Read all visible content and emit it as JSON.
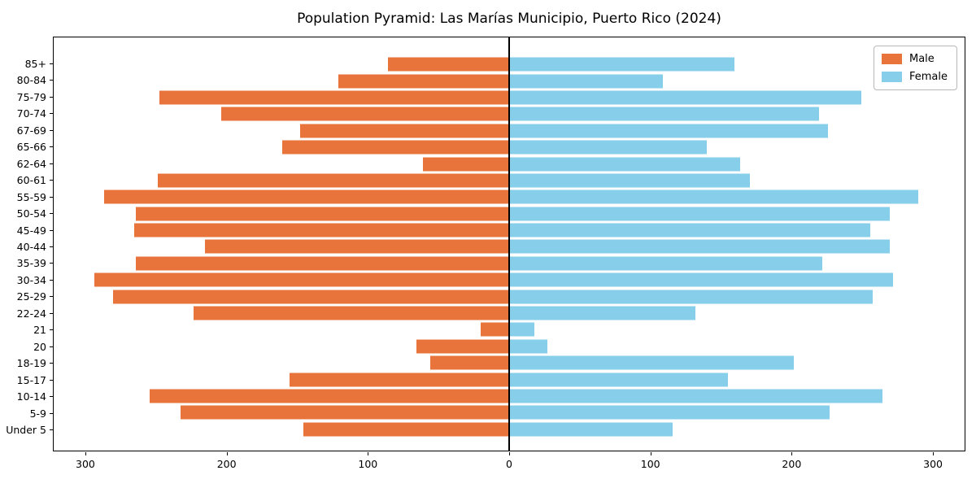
{
  "title": "Population Pyramid: Las Marías Municipio, Puerto Rico (2024)",
  "legend": {
    "male_label": "Male",
    "female_label": "Female"
  },
  "colors": {
    "male": "#e8743b",
    "female": "#87ceeb",
    "axis": "#000000",
    "background": "#ffffff"
  },
  "chart_data": {
    "type": "bar",
    "subtype": "population-pyramid",
    "title": "Population Pyramid: Las Marías Municipio, Puerto Rico (2024)",
    "categories_top_to_bottom": [
      "85+",
      "80-84",
      "75-79",
      "70-74",
      "67-69",
      "65-66",
      "62-64",
      "60-61",
      "55-59",
      "50-54",
      "45-49",
      "40-44",
      "35-39",
      "30-34",
      "25-29",
      "22-24",
      "21",
      "20",
      "18-19",
      "15-17",
      "10-14",
      "5-9",
      "Under 5"
    ],
    "series": [
      {
        "name": "Male",
        "side": "left",
        "color": "#e8743b",
        "values": [
          86,
          121,
          248,
          204,
          148,
          161,
          61,
          249,
          287,
          265,
          266,
          216,
          265,
          294,
          281,
          224,
          20,
          66,
          56,
          156,
          255,
          233,
          146
        ]
      },
      {
        "name": "Female",
        "side": "right",
        "color": "#87ceeb",
        "values": [
          160,
          109,
          250,
          220,
          226,
          140,
          164,
          171,
          290,
          270,
          256,
          270,
          222,
          272,
          258,
          132,
          18,
          27,
          202,
          155,
          265,
          227,
          116
        ]
      }
    ],
    "xlabel": "",
    "ylabel": "",
    "half_range": 323,
    "xlim": [
      -323,
      323
    ],
    "x_ticks": [
      {
        "value": -300,
        "label": "300"
      },
      {
        "value": -200,
        "label": "200"
      },
      {
        "value": -100,
        "label": "100"
      },
      {
        "value": 0,
        "label": "0"
      },
      {
        "value": 100,
        "label": "100"
      },
      {
        "value": 200,
        "label": "200"
      },
      {
        "value": 300,
        "label": "300"
      }
    ],
    "grid": false,
    "legend_position": "upper right",
    "zero_axis_line": true
  }
}
